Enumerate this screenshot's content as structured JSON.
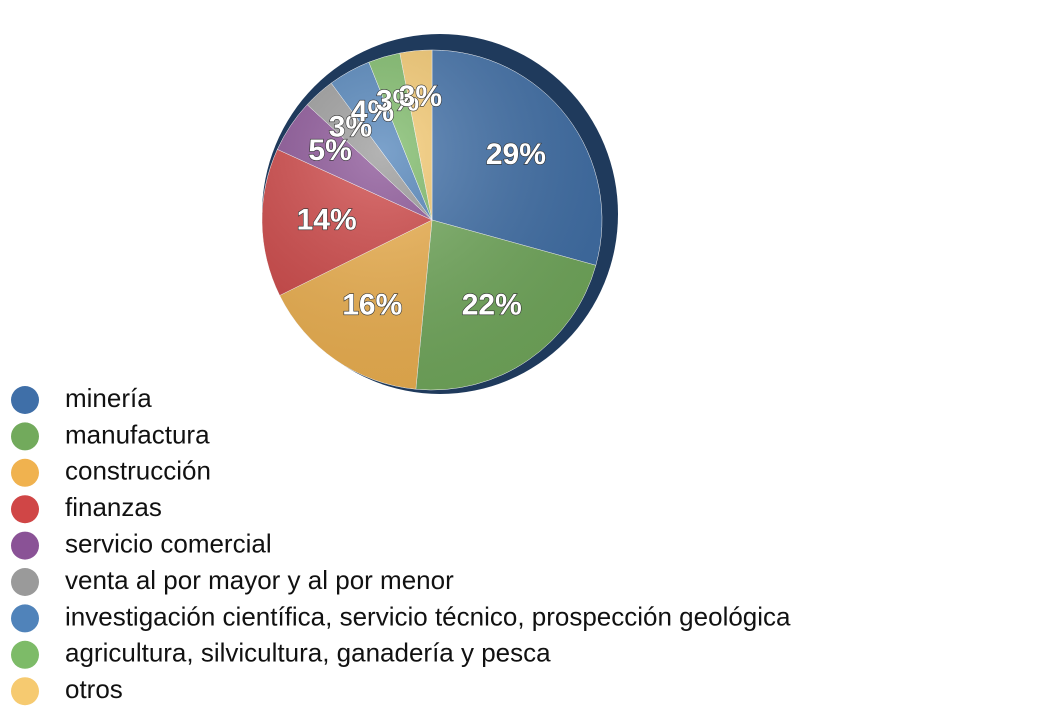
{
  "chart_data": {
    "type": "pie",
    "categories": [
      "minería",
      "manufactura",
      "construcción",
      "finanzas",
      "servicio comercial",
      "venta al por mayor y al por menor",
      "investigación científica, servicio técnico, prospección geológica",
      "agricultura, silvicultura, ganadería y pesca",
      "otros"
    ],
    "values": [
      29,
      22,
      16,
      14,
      5,
      3,
      4,
      3,
      3
    ],
    "value_labels": [
      "29%",
      "22%",
      "16%",
      "14%",
      "5%",
      "3%",
      "4%",
      "3%",
      "3%"
    ],
    "colors": [
      "#3f6fa8",
      "#72aa5c",
      "#f0b24f",
      "#d04646",
      "#8a5296",
      "#9a9a9a",
      "#5083ba",
      "#7dbb68",
      "#f6ca70"
    ]
  }
}
